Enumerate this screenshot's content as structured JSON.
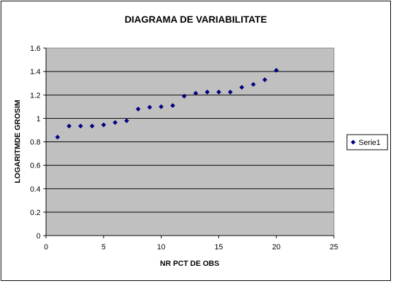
{
  "chart_data": {
    "type": "scatter",
    "title": "DIAGRAMA DE VARIABILITATE",
    "xlabel": "NR PCT DE OBS",
    "ylabel": "LOGARITMDE GROSIM",
    "xlim": [
      0,
      25
    ],
    "ylim": [
      0,
      1.6
    ],
    "x_ticks": [
      "0",
      "5",
      "10",
      "15",
      "20",
      "25"
    ],
    "y_ticks": [
      "0",
      "0.2",
      "0.4",
      "0.6",
      "0.8",
      "1",
      "1.2",
      "1.4",
      "1.6"
    ],
    "grid": "horizontal",
    "legend_position": "right",
    "plot_background": "#c0c0c0",
    "marker_color": "#000080",
    "series": [
      {
        "name": "Serie1",
        "x": [
          1,
          2,
          3,
          4,
          5,
          6,
          7,
          8,
          9,
          10,
          11,
          12,
          13,
          14,
          15,
          16,
          17,
          18,
          19,
          20
        ],
        "y": [
          0.84,
          0.935,
          0.935,
          0.935,
          0.945,
          0.965,
          0.98,
          1.08,
          1.095,
          1.1,
          1.11,
          1.19,
          1.215,
          1.225,
          1.225,
          1.225,
          1.265,
          1.29,
          1.33,
          1.41
        ]
      }
    ]
  }
}
